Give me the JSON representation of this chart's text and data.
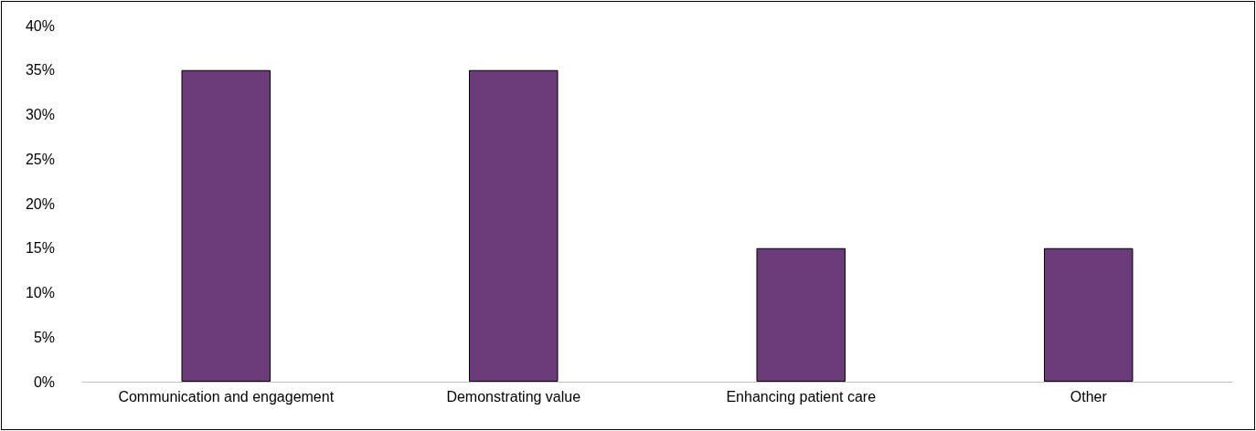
{
  "chart_data": {
    "type": "bar",
    "categories": [
      "Communication and engagement",
      "Demonstrating value",
      "Enhancing patient care",
      "Other"
    ],
    "values": [
      35,
      35,
      15,
      15
    ],
    "color": "#6a3b78",
    "ylim": [
      0,
      40
    ],
    "yticks": [
      {
        "value": 0,
        "label": "0%"
      },
      {
        "value": 5,
        "label": "5%"
      },
      {
        "value": 10,
        "label": "10%"
      },
      {
        "value": 15,
        "label": "15%"
      },
      {
        "value": 20,
        "label": "20%"
      },
      {
        "value": 25,
        "label": "25%"
      },
      {
        "value": 30,
        "label": "30%"
      },
      {
        "value": 35,
        "label": "35%"
      },
      {
        "value": 40,
        "label": "40%"
      }
    ],
    "grid": false
  }
}
